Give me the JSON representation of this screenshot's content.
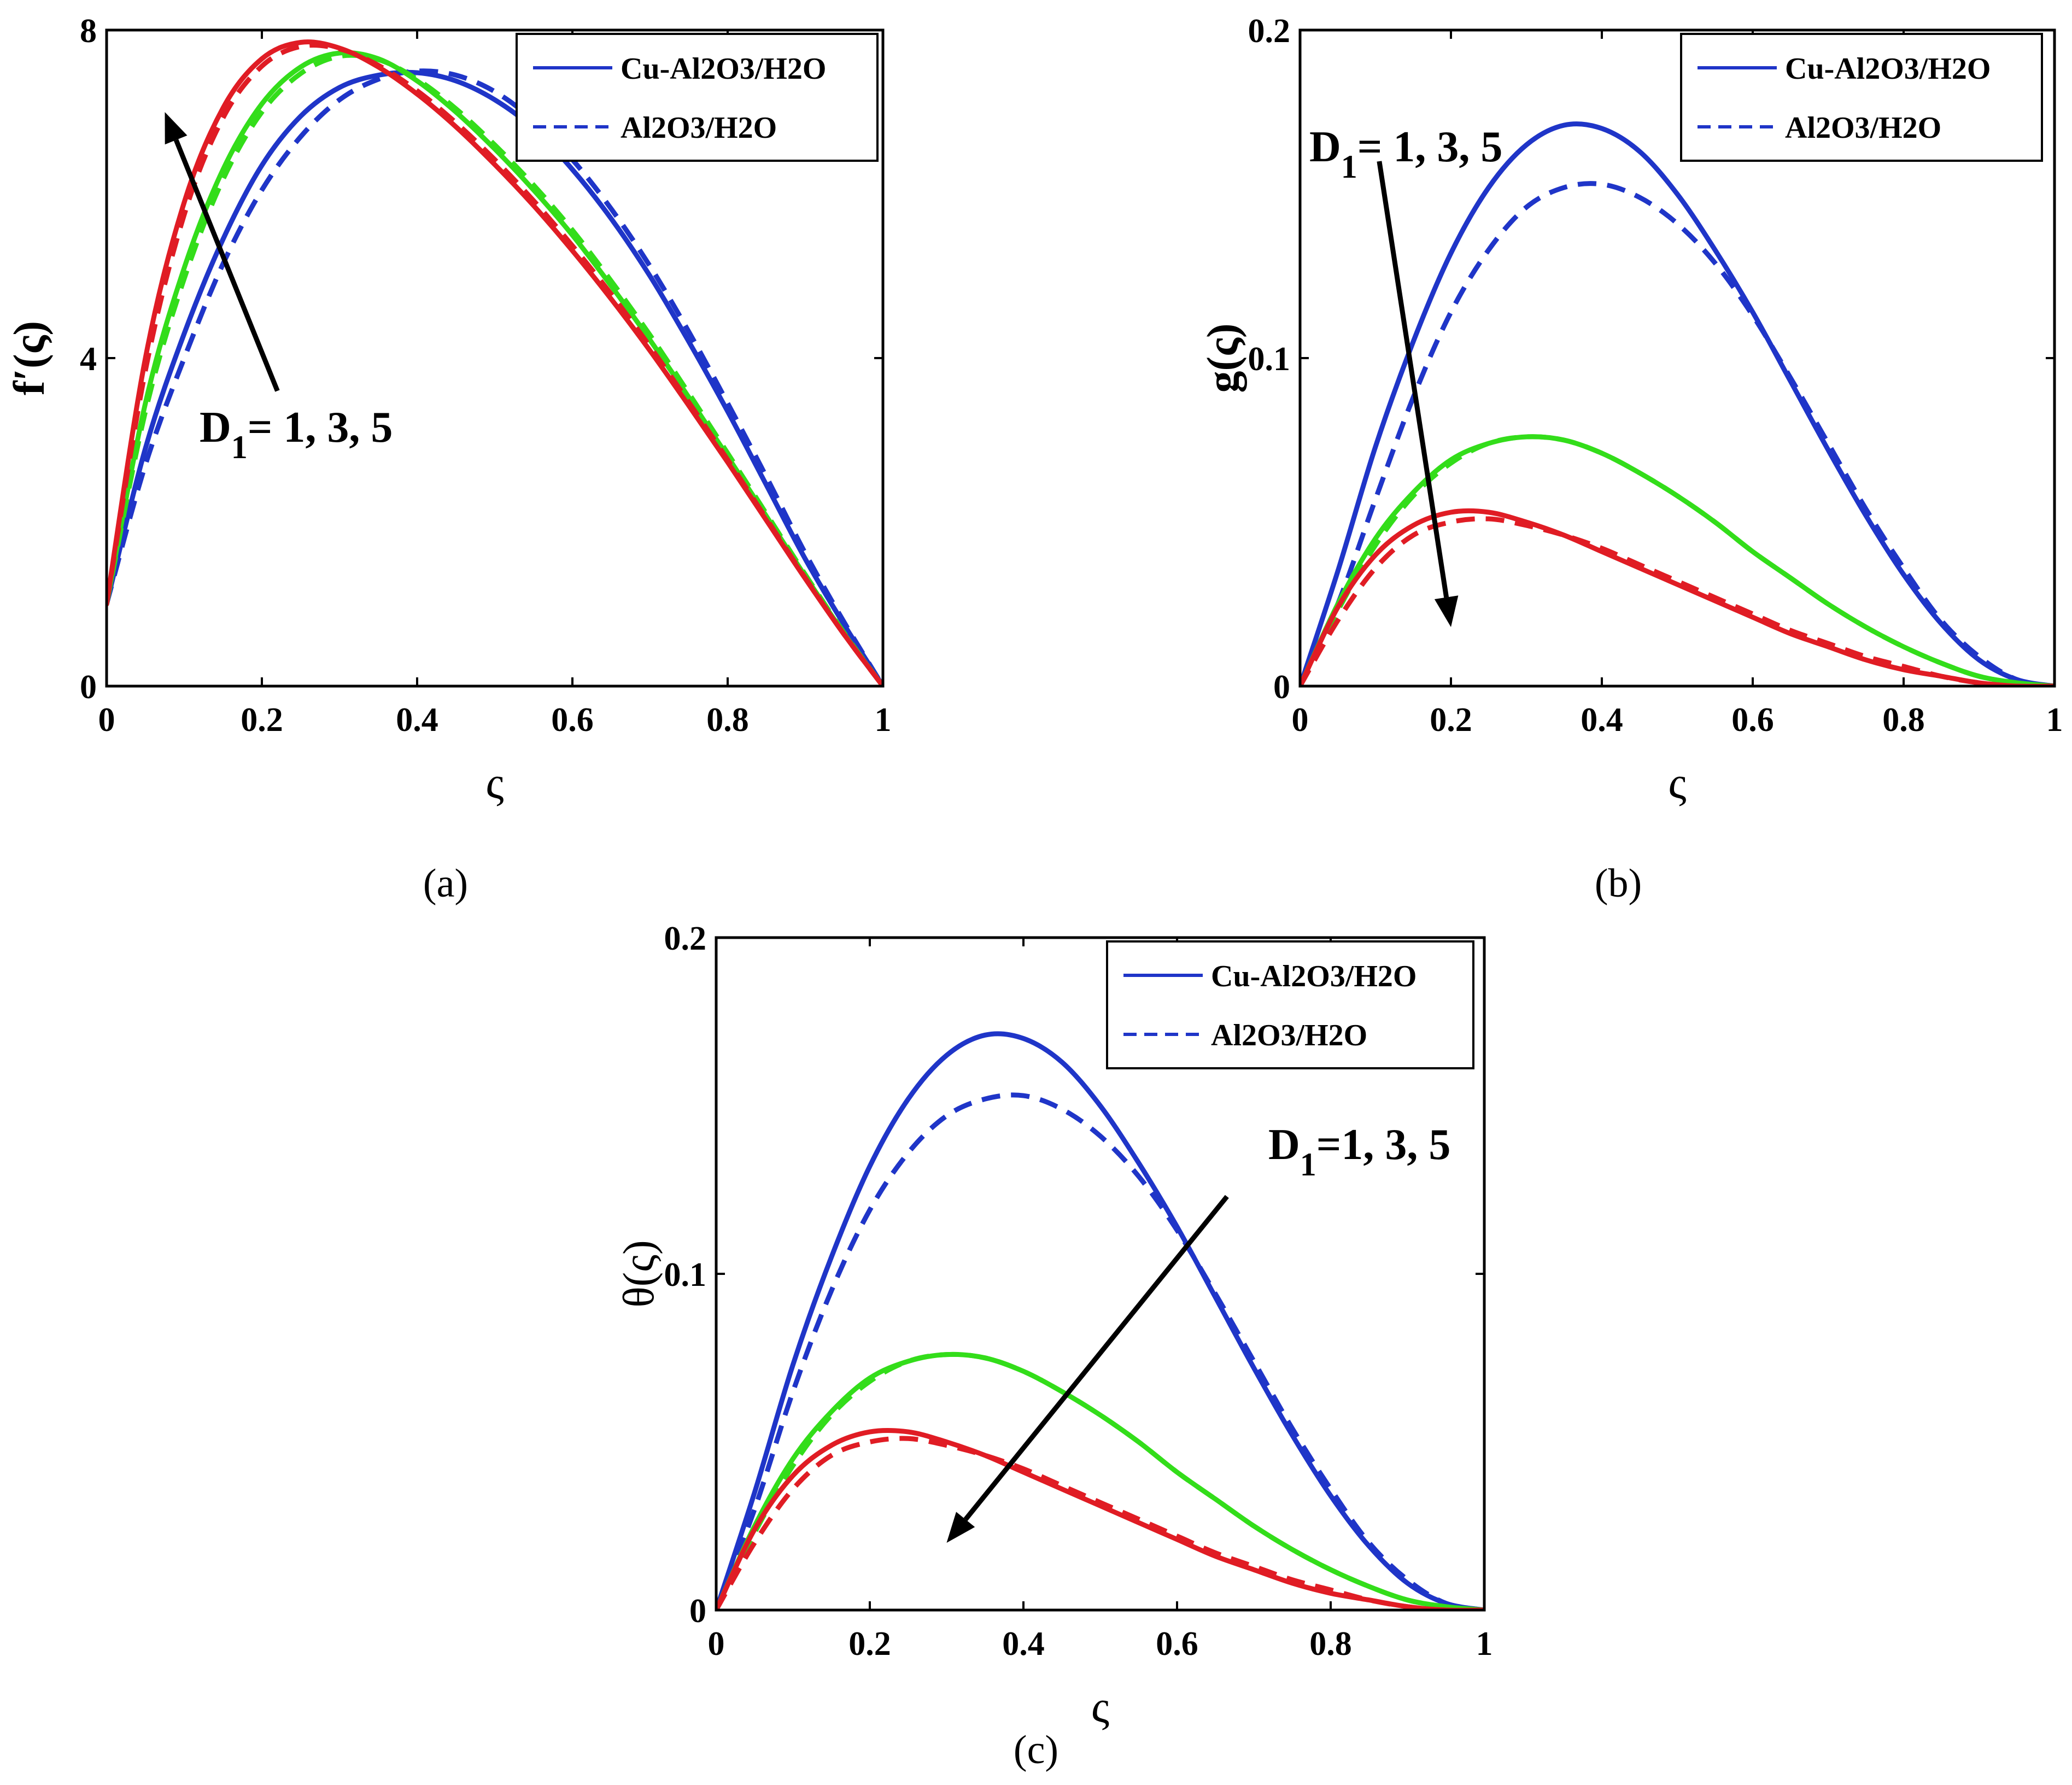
{
  "colors": {
    "blue": "#1f35c8",
    "green": "#33dd1a",
    "red": "#e01c24",
    "axis": "#000000"
  },
  "legend": {
    "solid_label": "Cu-Al2O3/H2O",
    "dashed_label": "Al2O3/H2O"
  },
  "chart_data": [
    {
      "id": "a",
      "type": "line",
      "caption": "(a)",
      "xlabel": "ς",
      "ylabel": "f′(ς)",
      "xlim": [
        0,
        1
      ],
      "ylim": [
        0,
        8
      ],
      "xticks": [
        0,
        0.2,
        0.4,
        0.6,
        0.8,
        1
      ],
      "xtick_labels": [
        "0",
        "0.2",
        "0.4",
        "0.6",
        "0.8",
        "1"
      ],
      "yticks": [
        0,
        4,
        8
      ],
      "ytick_labels": [
        "0",
        "4",
        "8"
      ],
      "annotation": {
        "prefix": "D",
        "sub": "1",
        "text": "= 1, 3, 5",
        "arrow": {
          "from": [
            0.22,
            3.6
          ],
          "to": [
            0.075,
            7.0
          ]
        }
      },
      "series": [
        {
          "name": "Cu-Al2O3/H2O, D1 = 1",
          "color": "blue",
          "style": "solid",
          "x": [
            0,
            0.05,
            0.1,
            0.15,
            0.2,
            0.25,
            0.3,
            0.35,
            0.4,
            0.45,
            0.5,
            0.55,
            0.6,
            0.65,
            0.7,
            0.75,
            0.8,
            0.85,
            0.9,
            0.95,
            1
          ],
          "y": [
            1.0,
            2.9,
            4.3,
            5.45,
            6.35,
            6.95,
            7.3,
            7.45,
            7.48,
            7.38,
            7.15,
            6.8,
            6.3,
            5.7,
            5.0,
            4.2,
            3.35,
            2.45,
            1.55,
            0.75,
            0.0
          ]
        },
        {
          "name": "Al2O3/H2O, D1 = 1",
          "color": "blue",
          "style": "dashed",
          "x": [
            0,
            0.05,
            0.1,
            0.15,
            0.2,
            0.25,
            0.3,
            0.35,
            0.4,
            0.45,
            0.5,
            0.55,
            0.6,
            0.65,
            0.7,
            0.75,
            0.8,
            0.85,
            0.9,
            0.95,
            1
          ],
          "y": [
            1.0,
            2.7,
            4.0,
            5.15,
            6.05,
            6.7,
            7.15,
            7.4,
            7.5,
            7.45,
            7.25,
            6.9,
            6.42,
            5.82,
            5.12,
            4.32,
            3.45,
            2.55,
            1.62,
            0.78,
            0.0
          ]
        },
        {
          "name": "Cu-Al2O3/H2O, D1 = 3",
          "color": "green",
          "style": "solid",
          "x": [
            0,
            0.05,
            0.1,
            0.15,
            0.2,
            0.25,
            0.3,
            0.35,
            0.4,
            0.45,
            0.5,
            0.55,
            0.6,
            0.65,
            0.7,
            0.75,
            0.8,
            0.85,
            0.9,
            0.95,
            1
          ],
          "y": [
            1.0,
            3.45,
            5.1,
            6.3,
            7.1,
            7.55,
            7.72,
            7.65,
            7.38,
            7.0,
            6.55,
            6.05,
            5.5,
            4.88,
            4.22,
            3.52,
            2.8,
            2.07,
            1.34,
            0.64,
            0.0
          ]
        },
        {
          "name": "Al2O3/H2O, D1 = 3",
          "color": "green",
          "style": "dashed",
          "x": [
            0,
            0.05,
            0.1,
            0.15,
            0.2,
            0.25,
            0.3,
            0.35,
            0.4,
            0.45,
            0.5,
            0.55,
            0.6,
            0.65,
            0.7,
            0.75,
            0.8,
            0.85,
            0.9,
            0.95,
            1
          ],
          "y": [
            1.0,
            3.35,
            4.97,
            6.18,
            7.0,
            7.47,
            7.68,
            7.64,
            7.4,
            7.04,
            6.6,
            6.11,
            5.56,
            4.94,
            4.28,
            3.57,
            2.84,
            2.1,
            1.36,
            0.65,
            0.0
          ]
        },
        {
          "name": "Cu-Al2O3/H2O, D1 = 5",
          "color": "red",
          "style": "solid",
          "x": [
            0,
            0.05,
            0.1,
            0.15,
            0.2,
            0.25,
            0.3,
            0.35,
            0.4,
            0.45,
            0.5,
            0.55,
            0.6,
            0.65,
            0.7,
            0.75,
            0.8,
            0.85,
            0.9,
            0.95,
            1
          ],
          "y": [
            1.0,
            4.0,
            5.9,
            7.05,
            7.65,
            7.85,
            7.78,
            7.55,
            7.22,
            6.82,
            6.36,
            5.86,
            5.31,
            4.72,
            4.09,
            3.42,
            2.73,
            2.02,
            1.31,
            0.63,
            0.0
          ]
        },
        {
          "name": "Al2O3/H2O, D1 = 5",
          "color": "red",
          "style": "dashed",
          "x": [
            0,
            0.05,
            0.1,
            0.15,
            0.2,
            0.25,
            0.3,
            0.35,
            0.4,
            0.45,
            0.5,
            0.55,
            0.6,
            0.65,
            0.7,
            0.75,
            0.8,
            0.85,
            0.9,
            0.95,
            1
          ],
          "y": [
            1.0,
            3.85,
            5.75,
            6.93,
            7.56,
            7.8,
            7.77,
            7.57,
            7.26,
            6.87,
            6.42,
            5.92,
            5.37,
            4.78,
            4.14,
            3.46,
            2.76,
            2.04,
            1.32,
            0.63,
            0.0
          ]
        }
      ]
    },
    {
      "id": "b",
      "type": "line",
      "caption": "(b)",
      "xlabel": "ς",
      "ylabel": "g(ς)",
      "xlim": [
        0,
        1
      ],
      "ylim": [
        0,
        0.2
      ],
      "xticks": [
        0,
        0.2,
        0.4,
        0.6,
        0.8,
        1
      ],
      "xtick_labels": [
        "0",
        "0.2",
        "0.4",
        "0.6",
        "0.8",
        "1"
      ],
      "yticks": [
        0,
        0.1,
        0.2
      ],
      "ytick_labels": [
        "0",
        "0.1",
        "0.2"
      ],
      "annotation": {
        "prefix": "D",
        "sub": "1",
        "text": "= 1, 3, 5",
        "arrow": {
          "from": [
            0.105,
            0.16
          ],
          "to": [
            0.2,
            0.018
          ]
        }
      },
      "series": [
        {
          "name": "Cu-Al2O3/H2O, D1 = 1",
          "color": "blue",
          "style": "solid",
          "x": [
            0,
            0.05,
            0.1,
            0.15,
            0.2,
            0.25,
            0.3,
            0.35,
            0.4,
            0.45,
            0.5,
            0.55,
            0.6,
            0.65,
            0.7,
            0.75,
            0.8,
            0.85,
            0.9,
            0.95,
            1
          ],
          "y": [
            0,
            0.035,
            0.073,
            0.105,
            0.132,
            0.152,
            0.165,
            0.171,
            0.17,
            0.163,
            0.15,
            0.133,
            0.114,
            0.093,
            0.072,
            0.052,
            0.034,
            0.019,
            0.008,
            0.002,
            0
          ]
        },
        {
          "name": "Al2O3/H2O, D1 = 1",
          "color": "blue",
          "style": "dashed",
          "x": [
            0,
            0.05,
            0.1,
            0.15,
            0.2,
            0.25,
            0.3,
            0.35,
            0.4,
            0.45,
            0.5,
            0.55,
            0.6,
            0.65,
            0.7,
            0.75,
            0.8,
            0.85,
            0.9,
            0.95,
            1
          ],
          "y": [
            0,
            0.025,
            0.057,
            0.088,
            0.114,
            0.133,
            0.146,
            0.152,
            0.153,
            0.149,
            0.141,
            0.129,
            0.113,
            0.094,
            0.074,
            0.054,
            0.036,
            0.02,
            0.009,
            0.002,
            0
          ]
        },
        {
          "name": "Cu-Al2O3/H2O, D1 = 3",
          "color": "green",
          "style": "solid",
          "x": [
            0,
            0.05,
            0.1,
            0.15,
            0.2,
            0.25,
            0.3,
            0.35,
            0.4,
            0.45,
            0.5,
            0.55,
            0.6,
            0.65,
            0.7,
            0.75,
            0.8,
            0.85,
            0.9,
            0.95,
            1
          ],
          "y": [
            0,
            0.025,
            0.045,
            0.059,
            0.069,
            0.074,
            0.076,
            0.075,
            0.071,
            0.065,
            0.058,
            0.05,
            0.041,
            0.033,
            0.025,
            0.018,
            0.012,
            0.007,
            0.003,
            0.001,
            0
          ]
        },
        {
          "name": "Al2O3/H2O, D1 = 3",
          "color": "green",
          "style": "dashed",
          "x": [
            0,
            0.05,
            0.1,
            0.15,
            0.2,
            0.25,
            0.3,
            0.35,
            0.4,
            0.45,
            0.5,
            0.55,
            0.6,
            0.65,
            0.7,
            0.75,
            0.8,
            0.85,
            0.9,
            0.95,
            1
          ],
          "y": [
            0,
            0.023,
            0.043,
            0.058,
            0.068,
            0.074,
            0.076,
            0.075,
            0.071,
            0.065,
            0.058,
            0.05,
            0.041,
            0.033,
            0.025,
            0.018,
            0.012,
            0.007,
            0.003,
            0.001,
            0
          ]
        },
        {
          "name": "Cu-Al2O3/H2O, D1 = 5",
          "color": "red",
          "style": "solid",
          "x": [
            0,
            0.05,
            0.1,
            0.15,
            0.2,
            0.25,
            0.3,
            0.35,
            0.4,
            0.45,
            0.5,
            0.55,
            0.6,
            0.65,
            0.7,
            0.75,
            0.8,
            0.85,
            0.9,
            0.95,
            1
          ],
          "y": [
            0,
            0.024,
            0.04,
            0.049,
            0.053,
            0.053,
            0.05,
            0.046,
            0.041,
            0.036,
            0.031,
            0.026,
            0.021,
            0.016,
            0.012,
            0.008,
            0.005,
            0.003,
            0.001,
            0,
            0
          ]
        },
        {
          "name": "Al2O3/H2O, D1 = 5",
          "color": "red",
          "style": "dashed",
          "x": [
            0,
            0.05,
            0.1,
            0.15,
            0.2,
            0.25,
            0.3,
            0.35,
            0.4,
            0.45,
            0.5,
            0.55,
            0.6,
            0.65,
            0.7,
            0.75,
            0.8,
            0.85,
            0.9,
            0.95,
            1
          ],
          "y": [
            0,
            0.02,
            0.036,
            0.046,
            0.05,
            0.051,
            0.049,
            0.046,
            0.042,
            0.037,
            0.032,
            0.027,
            0.022,
            0.017,
            0.013,
            0.009,
            0.006,
            0.003,
            0.001,
            0,
            0
          ]
        }
      ]
    },
    {
      "id": "c",
      "type": "line",
      "caption": "(c)",
      "xlabel": "ς",
      "ylabel": "θ(ς)",
      "xlim": [
        0,
        1
      ],
      "ylim": [
        0,
        0.2
      ],
      "xticks": [
        0,
        0.2,
        0.4,
        0.6,
        0.8,
        1
      ],
      "xtick_labels": [
        "0",
        "0.2",
        "0.4",
        "0.6",
        "0.8",
        "1"
      ],
      "yticks": [
        0,
        0.1,
        0.2
      ],
      "ytick_labels": [
        "0",
        "0.1",
        "0.2"
      ],
      "annotation": {
        "prefix": "D",
        "sub": "1",
        "text": "=1, 3, 5",
        "arrow": {
          "from": [
            0.665,
            0.123
          ],
          "to": [
            0.3,
            0.02
          ]
        }
      },
      "series": [
        {
          "name": "Cu-Al2O3/H2O, D1 = 1",
          "color": "blue",
          "style": "solid",
          "x": [
            0,
            0.05,
            0.1,
            0.15,
            0.2,
            0.25,
            0.3,
            0.35,
            0.4,
            0.45,
            0.5,
            0.55,
            0.6,
            0.65,
            0.7,
            0.75,
            0.8,
            0.85,
            0.9,
            0.95,
            1
          ],
          "y": [
            0,
            0.035,
            0.073,
            0.105,
            0.132,
            0.152,
            0.165,
            0.171,
            0.17,
            0.163,
            0.15,
            0.133,
            0.114,
            0.093,
            0.072,
            0.052,
            0.034,
            0.019,
            0.008,
            0.002,
            0
          ]
        },
        {
          "name": "Al2O3/H2O, D1 = 1",
          "color": "blue",
          "style": "dashed",
          "x": [
            0,
            0.05,
            0.1,
            0.15,
            0.2,
            0.25,
            0.3,
            0.35,
            0.4,
            0.45,
            0.5,
            0.55,
            0.6,
            0.65,
            0.7,
            0.75,
            0.8,
            0.85,
            0.9,
            0.95,
            1
          ],
          "y": [
            0,
            0.03,
            0.065,
            0.095,
            0.119,
            0.136,
            0.147,
            0.152,
            0.153,
            0.149,
            0.141,
            0.129,
            0.113,
            0.094,
            0.074,
            0.054,
            0.036,
            0.02,
            0.009,
            0.002,
            0
          ]
        },
        {
          "name": "Cu-Al2O3/H2O, D1 = 3",
          "color": "green",
          "style": "solid",
          "x": [
            0,
            0.05,
            0.1,
            0.15,
            0.2,
            0.25,
            0.3,
            0.35,
            0.4,
            0.45,
            0.5,
            0.55,
            0.6,
            0.65,
            0.7,
            0.75,
            0.8,
            0.85,
            0.9,
            0.95,
            1
          ],
          "y": [
            0,
            0.025,
            0.045,
            0.059,
            0.069,
            0.074,
            0.076,
            0.075,
            0.071,
            0.065,
            0.058,
            0.05,
            0.041,
            0.033,
            0.025,
            0.018,
            0.012,
            0.007,
            0.003,
            0.001,
            0
          ]
        },
        {
          "name": "Al2O3/H2O, D1 = 3",
          "color": "green",
          "style": "dashed",
          "x": [
            0,
            0.05,
            0.1,
            0.15,
            0.2,
            0.25,
            0.3,
            0.35,
            0.4,
            0.45,
            0.5,
            0.55,
            0.6,
            0.65,
            0.7,
            0.75,
            0.8,
            0.85,
            0.9,
            0.95,
            1
          ],
          "y": [
            0,
            0.023,
            0.043,
            0.058,
            0.068,
            0.074,
            0.076,
            0.075,
            0.071,
            0.065,
            0.058,
            0.05,
            0.041,
            0.033,
            0.025,
            0.018,
            0.012,
            0.007,
            0.003,
            0.001,
            0
          ]
        },
        {
          "name": "Cu-Al2O3/H2O, D1 = 5",
          "color": "red",
          "style": "solid",
          "x": [
            0,
            0.05,
            0.1,
            0.15,
            0.2,
            0.25,
            0.3,
            0.35,
            0.4,
            0.45,
            0.5,
            0.55,
            0.6,
            0.65,
            0.7,
            0.75,
            0.8,
            0.85,
            0.9,
            0.95,
            1
          ],
          "y": [
            0,
            0.024,
            0.04,
            0.049,
            0.053,
            0.053,
            0.05,
            0.046,
            0.041,
            0.036,
            0.031,
            0.026,
            0.021,
            0.016,
            0.012,
            0.008,
            0.005,
            0.003,
            0.001,
            0,
            0
          ]
        },
        {
          "name": "Al2O3/H2O, D1 = 5",
          "color": "red",
          "style": "dashed",
          "x": [
            0,
            0.05,
            0.1,
            0.15,
            0.2,
            0.25,
            0.3,
            0.35,
            0.4,
            0.45,
            0.5,
            0.55,
            0.6,
            0.65,
            0.7,
            0.75,
            0.8,
            0.85,
            0.9,
            0.95,
            1
          ],
          "y": [
            0,
            0.02,
            0.036,
            0.046,
            0.05,
            0.051,
            0.049,
            0.046,
            0.042,
            0.037,
            0.032,
            0.027,
            0.022,
            0.017,
            0.013,
            0.009,
            0.006,
            0.003,
            0.001,
            0,
            0
          ]
        }
      ]
    }
  ]
}
